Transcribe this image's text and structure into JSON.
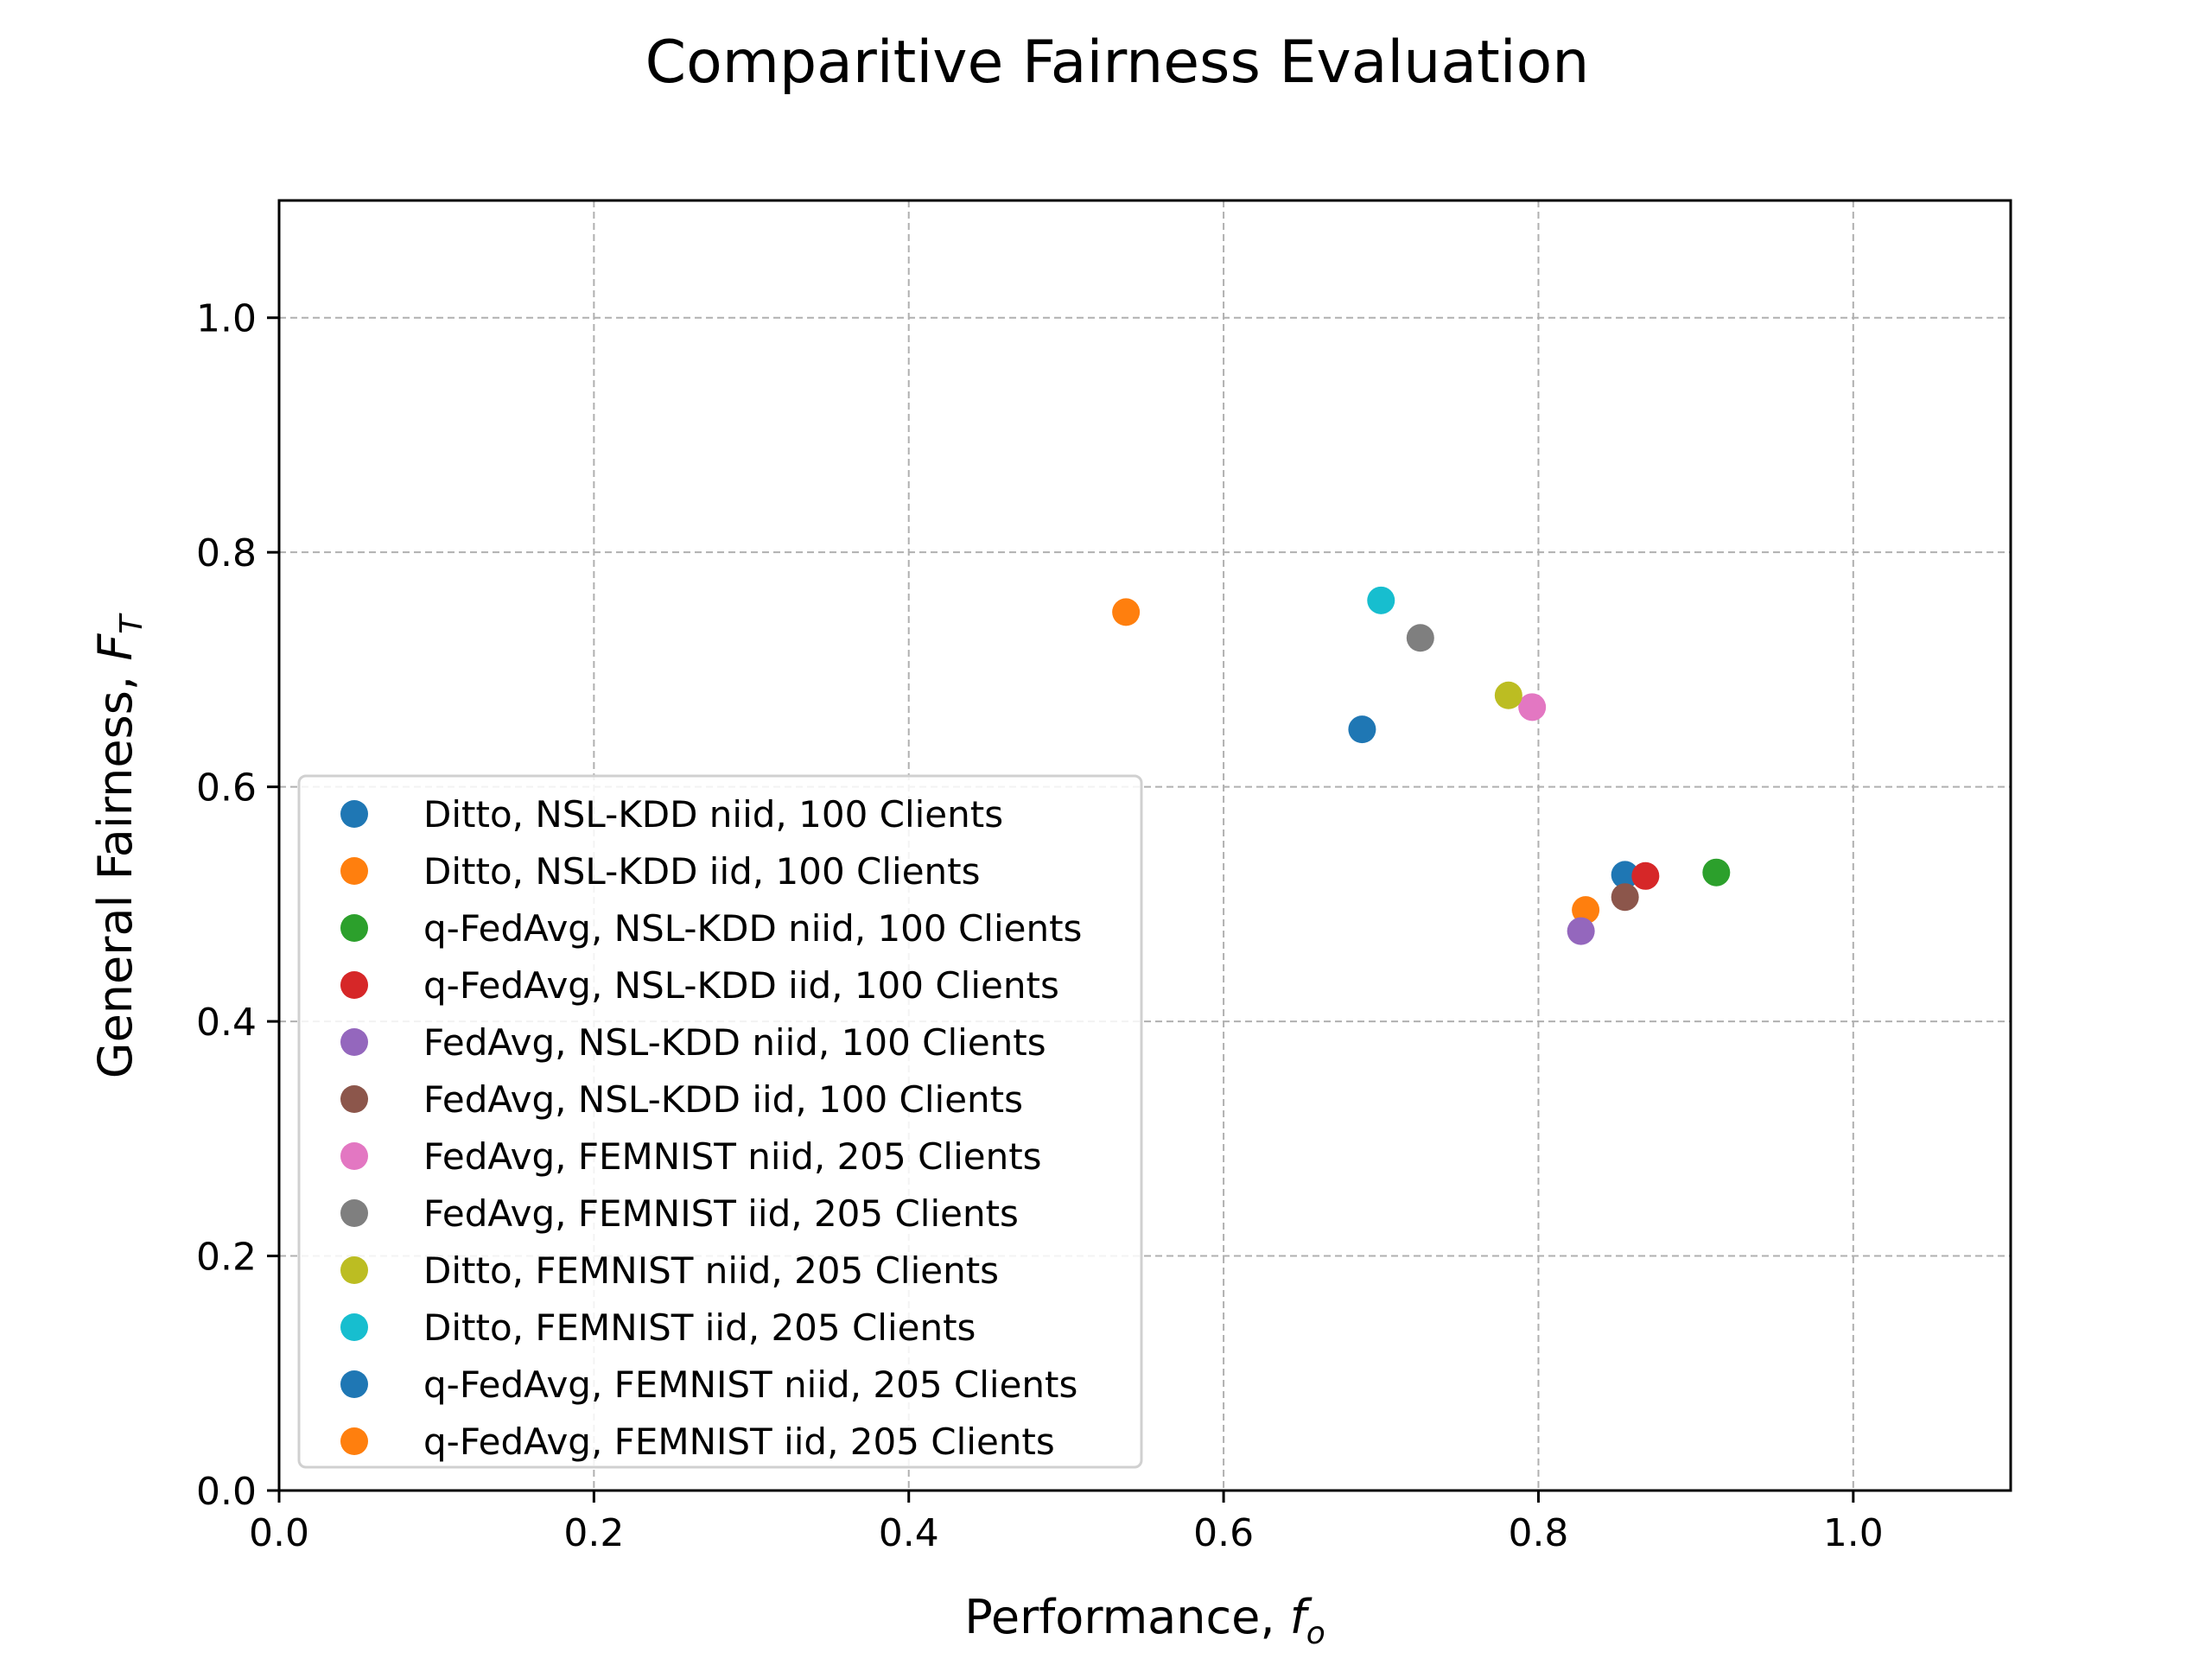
{
  "chart_data": {
    "type": "scatter",
    "title": "Comparitive Fairness Evaluation",
    "xlabel": {
      "text": "Performance, ",
      "var": "f",
      "sub": "o"
    },
    "ylabel": {
      "text": "General Fairness, ",
      "var": "F",
      "sub": "T"
    },
    "xlim": [
      0,
      1.1
    ],
    "ylim": [
      0,
      1.1
    ],
    "xticks": [
      0.0,
      0.2,
      0.4,
      0.6,
      0.8,
      1.0
    ],
    "yticks": [
      0.0,
      0.2,
      0.4,
      0.6,
      0.8,
      1.0
    ],
    "xtick_labels": [
      "0.0",
      "0.2",
      "0.4",
      "0.6",
      "0.8",
      "1.0"
    ],
    "ytick_labels": [
      "0.0",
      "0.2",
      "0.4",
      "0.6",
      "0.8",
      "1.0"
    ],
    "grid": true,
    "legend_position": "lower-left",
    "series": [
      {
        "name": "Ditto, NSL-KDD niid, 100 Clients",
        "color": "#1f77b4",
        "x": 0.855,
        "y": 0.525
      },
      {
        "name": "Ditto, NSL-KDD iid, 100 Clients",
        "color": "#ff7f0e",
        "x": 0.83,
        "y": 0.495
      },
      {
        "name": "q-FedAvg, NSL-KDD niid, 100 Clients",
        "color": "#2ca02c",
        "x": 0.913,
        "y": 0.527
      },
      {
        "name": "q-FedAvg, NSL-KDD iid, 100 Clients",
        "color": "#d62728",
        "x": 0.868,
        "y": 0.524
      },
      {
        "name": "FedAvg, NSL-KDD niid, 100 Clients",
        "color": "#9467bd",
        "x": 0.827,
        "y": 0.477
      },
      {
        "name": "FedAvg, NSL-KDD iid, 100 Clients",
        "color": "#8c564b",
        "x": 0.855,
        "y": 0.506
      },
      {
        "name": "FedAvg, FEMNIST niid, 205 Clients",
        "color": "#e377c2",
        "x": 0.796,
        "y": 0.668
      },
      {
        "name": "FedAvg, FEMNIST iid, 205 Clients",
        "color": "#7f7f7f",
        "x": 0.725,
        "y": 0.727
      },
      {
        "name": "Ditto, FEMNIST niid, 205 Clients",
        "color": "#bcbd22",
        "x": 0.781,
        "y": 0.678
      },
      {
        "name": "Ditto, FEMNIST iid, 205 Clients",
        "color": "#17becf",
        "x": 0.7,
        "y": 0.759
      },
      {
        "name": "q-FedAvg, FEMNIST niid, 205 Clients",
        "color": "#1f77b4",
        "x": 0.688,
        "y": 0.649
      },
      {
        "name": "q-FedAvg, FEMNIST iid, 205 Clients",
        "color": "#ff7f0e",
        "x": 0.538,
        "y": 0.749
      }
    ]
  }
}
